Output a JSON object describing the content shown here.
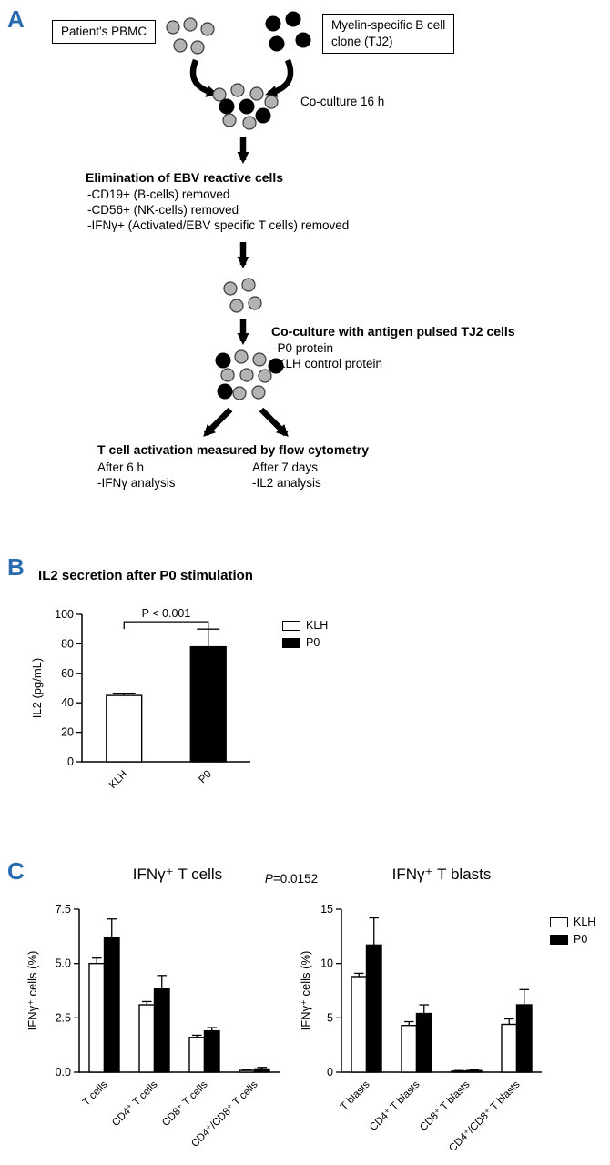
{
  "colors": {
    "panel_letter": "#2a6bb0"
  },
  "panel_a": {
    "label": "A",
    "pbmc_box": "Patient's PBMC",
    "clone_box_line1": "Myelin-specific B cell",
    "clone_box_line2": "clone (TJ2)",
    "coculture_label": "Co-culture 16 h",
    "elimination_heading": "Elimination of EBV reactive cells",
    "elimination_items": [
      "-CD19+ (B-cells) removed",
      "-CD56+ (NK-cells) removed",
      "-IFNγ+ (Activated/EBV specific T cells) removed"
    ],
    "coculture2_heading": "Co-culture with antigen pulsed TJ2 cells",
    "coculture2_items": [
      "-P0 protein",
      "-KLH control protein"
    ],
    "activation_heading": "T cell activation measured by flow cytometry",
    "after_6h": "After 6 h",
    "ifng_analysis": "-IFNγ analysis",
    "after_7d": "After 7 days",
    "il2_analysis": "-IL2 analysis"
  },
  "panel_b": {
    "label": "B"
  },
  "panel_c": {
    "label": "C",
    "pvalue": {
      "symbol": "P",
      "rest": "=0.0152"
    }
  },
  "chart_data": [
    {
      "type": "bar",
      "title": "IL2 secretion after P0 stimulation",
      "ylabel": "IL2 (pg/mL)",
      "ylim": [
        0,
        100
      ],
      "yticks": [
        "0",
        "20",
        "40",
        "60",
        "80",
        "100"
      ],
      "categories": [
        "KLH",
        "P0"
      ],
      "values": [
        45,
        78
      ],
      "errors": [
        1.5,
        12
      ],
      "bar_fills": [
        "#ffffff",
        "#000000"
      ],
      "annotation": {
        "label": "P < 0.001",
        "from": 0,
        "to": 1,
        "y": 95
      },
      "legend": [
        {
          "label": "KLH",
          "fill": "#ffffff"
        },
        {
          "label": "P0",
          "fill": "#000000"
        }
      ]
    },
    {
      "type": "grouped-bar",
      "title": "IFNγ⁺ T cells",
      "ylabel": "IFNγ⁺ cells (%)",
      "ylim": [
        0,
        7.5
      ],
      "yticks": [
        "0.0",
        "2.5",
        "5.0",
        "7.5"
      ],
      "categories": [
        "T cells",
        "CD4⁺ T cells",
        "CD8⁺ T cells",
        "CD4⁺/CD8⁺ T cells"
      ],
      "series": [
        {
          "name": "KLH",
          "fill": "#ffffff",
          "values": [
            5.0,
            3.1,
            1.6,
            0.08
          ],
          "errors": [
            0.25,
            0.15,
            0.1,
            0.05
          ]
        },
        {
          "name": "P0",
          "fill": "#000000",
          "values": [
            6.2,
            3.85,
            1.9,
            0.15
          ],
          "errors": [
            0.85,
            0.6,
            0.15,
            0.07
          ]
        }
      ],
      "legend": [
        {
          "label": "KLH",
          "fill": "#ffffff"
        },
        {
          "label": "P0",
          "fill": "#000000"
        }
      ]
    },
    {
      "type": "grouped-bar",
      "title": "IFNγ⁺ T blasts",
      "ylabel": "IFNγ⁺ cells (%)",
      "ylim": [
        0,
        15
      ],
      "yticks": [
        "0",
        "5",
        "10",
        "15"
      ],
      "categories": [
        "T blasts",
        "CD4⁺ T blasts",
        "CD8⁺ T blasts",
        "CD4⁺/CD8⁺ T blasts"
      ],
      "series": [
        {
          "name": "KLH",
          "fill": "#ffffff",
          "values": [
            8.8,
            4.3,
            0.1,
            4.4
          ],
          "errors": [
            0.3,
            0.35,
            0.05,
            0.5
          ]
        },
        {
          "name": "P0",
          "fill": "#000000",
          "values": [
            11.7,
            5.4,
            0.15,
            6.2
          ],
          "errors": [
            2.5,
            0.8,
            0.07,
            1.4
          ]
        }
      ],
      "legend": [
        {
          "label": "KLH",
          "fill": "#ffffff"
        },
        {
          "label": "P0",
          "fill": "#000000"
        }
      ]
    }
  ]
}
